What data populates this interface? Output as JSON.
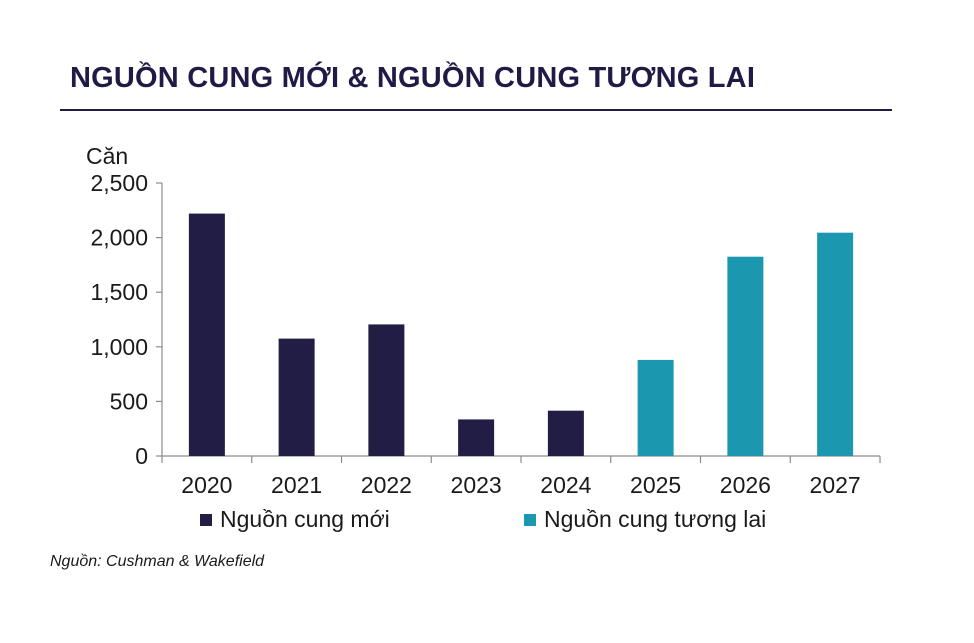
{
  "colors": {
    "new_supply": "#211d45",
    "future_supply": "#1b98b0",
    "title": "#1f1b45"
  },
  "source_text": "Nguồn: Cushman & Wakefield",
  "chart_data": {
    "type": "bar",
    "title": "NGUỒN CUNG MỚI & NGUỒN CUNG TƯƠNG LAI",
    "ylabel": "Căn",
    "xlabel": "",
    "ylim": [
      0,
      2500
    ],
    "yticks": [
      0,
      500,
      1000,
      1500,
      2000,
      2500
    ],
    "ytick_labels": [
      "0",
      "500",
      "1,000",
      "1,500",
      "2,000",
      "2,500"
    ],
    "categories": [
      "2020",
      "2021",
      "2022",
      "2023",
      "2024",
      "2025",
      "2026",
      "2027"
    ],
    "series": [
      {
        "name": "Nguồn cung mới",
        "values": [
          2220,
          1075,
          1205,
          335,
          415,
          null,
          null,
          null
        ]
      },
      {
        "name": "Nguồn cung tương lai",
        "values": [
          null,
          null,
          null,
          null,
          null,
          880,
          1825,
          2045
        ]
      }
    ],
    "legend_position": "bottom",
    "grid": false
  }
}
